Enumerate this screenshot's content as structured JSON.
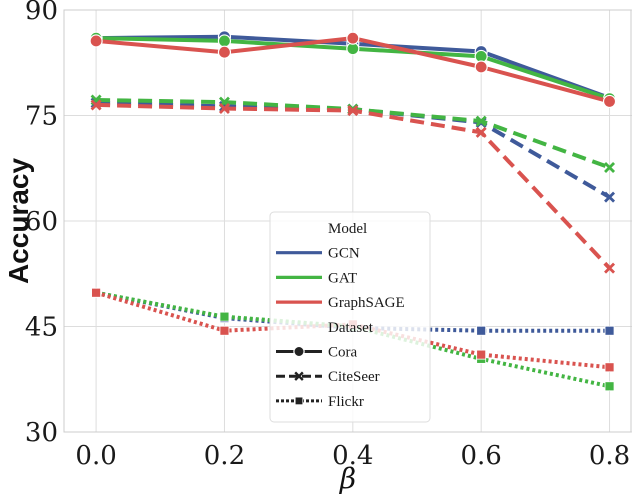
{
  "chart_data": {
    "type": "line",
    "title": "",
    "xlabel": "β",
    "ylabel": "Accuracy",
    "x": [
      0.0,
      0.2,
      0.4,
      0.6,
      0.8
    ],
    "x_ticks": [
      "0.0",
      "0.2",
      "0.4",
      "0.6",
      "0.8"
    ],
    "ylim": [
      30,
      90
    ],
    "y_ticks": [
      "30",
      "45",
      "60",
      "75",
      "90"
    ],
    "y_tick_values": [
      30,
      45,
      60,
      75,
      90
    ],
    "grid": true,
    "colors": {
      "GCN": "#3f5a9a",
      "GAT": "#43b543",
      "GraphSAGE": "#d9534f"
    },
    "series": [
      {
        "model": "GCN",
        "dataset": "Cora",
        "values": [
          86.0,
          86.2,
          85.2,
          84.1,
          77.5
        ]
      },
      {
        "model": "GAT",
        "dataset": "Cora",
        "values": [
          86.0,
          85.6,
          84.5,
          83.4,
          77.4
        ]
      },
      {
        "model": "GraphSAGE",
        "dataset": "Cora",
        "values": [
          85.6,
          84.0,
          86.0,
          81.9,
          77.0
        ]
      },
      {
        "model": "GCN",
        "dataset": "CiteSeer",
        "values": [
          76.8,
          76.3,
          75.9,
          74.0,
          63.4
        ]
      },
      {
        "model": "GAT",
        "dataset": "CiteSeer",
        "values": [
          77.2,
          76.9,
          75.9,
          74.2,
          67.6
        ]
      },
      {
        "model": "GraphSAGE",
        "dataset": "CiteSeer",
        "values": [
          76.5,
          76.0,
          75.7,
          72.6,
          53.3
        ]
      },
      {
        "model": "GCN",
        "dataset": "Flickr",
        "values": [
          49.8,
          46.2,
          44.8,
          44.4,
          44.4
        ]
      },
      {
        "model": "GAT",
        "dataset": "Flickr",
        "values": [
          49.8,
          46.4,
          45.0,
          40.4,
          36.5
        ]
      },
      {
        "model": "GraphSAGE",
        "dataset": "Flickr",
        "values": [
          49.8,
          44.4,
          45.3,
          41.0,
          39.2
        ]
      }
    ],
    "legend": {
      "position": "center",
      "model_title": "Model",
      "models": [
        "GCN",
        "GAT",
        "GraphSAGE"
      ],
      "dataset_title": "Dataset",
      "datasets": [
        "Cora",
        "CiteSeer",
        "Flickr"
      ]
    }
  }
}
